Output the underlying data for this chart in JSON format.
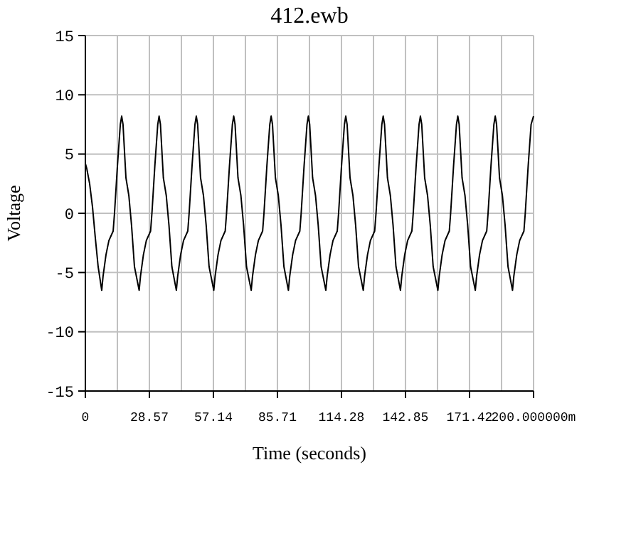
{
  "chart_data": {
    "type": "line",
    "title": "412.ewb",
    "xlabel": "Time (seconds)",
    "ylabel": "Voltage",
    "xlim": [
      0,
      200
    ],
    "ylim": [
      -15,
      15
    ],
    "yticks": [
      -15,
      -10,
      -5,
      0,
      5,
      10,
      15
    ],
    "xticks": [
      {
        "value": 0,
        "label": "0"
      },
      {
        "value": 14.29,
        "label": null
      },
      {
        "value": 28.57,
        "label": "28.57"
      },
      {
        "value": 42.86,
        "label": null
      },
      {
        "value": 57.14,
        "label": "57.14"
      },
      {
        "value": 71.43,
        "label": null
      },
      {
        "value": 85.71,
        "label": "85.71"
      },
      {
        "value": 100,
        "label": null
      },
      {
        "value": 114.28,
        "label": "114.28"
      },
      {
        "value": 128.57,
        "label": null
      },
      {
        "value": 142.85,
        "label": "142.85"
      },
      {
        "value": 157.14,
        "label": null
      },
      {
        "value": 171.42,
        "label": "171.42"
      },
      {
        "value": 185.71,
        "label": null
      },
      {
        "value": 200,
        "label": "200.000000m"
      }
    ],
    "grid": true,
    "marker": "none",
    "line_style": "solid",
    "series": [
      {
        "color": "#000000",
        "x": [
          0,
          0.6,
          1.9,
          3.2,
          4.4,
          5.7,
          7.3,
          7.9,
          9.2,
          10.5,
          12.4,
          13.0,
          14.3,
          15.6,
          16.2,
          16.8,
          18.1,
          19.4,
          20.6,
          21.9,
          24.0,
          24.6,
          25.9,
          27.2,
          29.1,
          29.7,
          31.0,
          32.3,
          32.9,
          33.5,
          34.8,
          36.1,
          37.3,
          38.6,
          40.6,
          41.2,
          42.5,
          43.8,
          45.7,
          46.3,
          47.6,
          48.9,
          49.5,
          50.1,
          51.4,
          52.7,
          53.9,
          55.2,
          57.3,
          57.9,
          59.2,
          60.5,
          62.4,
          63.0,
          64.3,
          65.6,
          66.2,
          66.8,
          68.1,
          69.4,
          70.6,
          71.9,
          74.0,
          74.6,
          75.9,
          77.2,
          79.1,
          79.7,
          81.0,
          82.3,
          82.9,
          83.5,
          84.8,
          86.1,
          87.3,
          88.6,
          90.6,
          91.2,
          92.5,
          93.8,
          95.7,
          96.3,
          97.6,
          98.9,
          99.5,
          100.1,
          101.4,
          102.7,
          103.9,
          105.2,
          107.3,
          107.9,
          109.2,
          110.5,
          112.4,
          113.0,
          114.3,
          115.6,
          116.2,
          116.8,
          118.1,
          119.4,
          120.6,
          121.9,
          124.0,
          124.6,
          125.9,
          127.2,
          129.1,
          129.7,
          131.0,
          132.3,
          132.9,
          133.5,
          134.8,
          136.1,
          137.3,
          138.6,
          140.6,
          141.2,
          142.5,
          143.8,
          145.7,
          146.3,
          147.6,
          148.9,
          149.5,
          150.1,
          151.4,
          152.7,
          153.9,
          155.2,
          157.3,
          157.9,
          159.2,
          160.5,
          162.4,
          163.0,
          164.3,
          165.6,
          166.2,
          166.8,
          168.1,
          169.4,
          170.6,
          171.9,
          174.0,
          174.6,
          175.9,
          177.2,
          179.1,
          179.7,
          181.0,
          182.3,
          182.9,
          183.5,
          184.8,
          186.1,
          187.3,
          188.6,
          190.6,
          191.2,
          192.5,
          193.8,
          195.7,
          196.3,
          197.6,
          198.9,
          200
        ],
        "values": [
          4.2,
          3.8,
          2.5,
          0.5,
          -2,
          -4.5,
          -6.5,
          -5.3,
          -3.5,
          -2.3,
          -1.5,
          0,
          4,
          7.5,
          8.2,
          7.5,
          3,
          1.5,
          -1,
          -4.5,
          -6.5,
          -5.3,
          -3.5,
          -2.3,
          -1.5,
          0,
          4,
          7.5,
          8.2,
          7.5,
          3,
          1.5,
          -1,
          -4.5,
          -6.5,
          -5.3,
          -3.5,
          -2.3,
          -1.5,
          0,
          4,
          7.5,
          8.2,
          7.5,
          3,
          1.5,
          -1,
          -4.5,
          -6.5,
          -5.3,
          -3.5,
          -2.3,
          -1.5,
          0,
          4,
          7.5,
          8.2,
          7.5,
          3,
          1.5,
          -1,
          -4.5,
          -6.5,
          -5.3,
          -3.5,
          -2.3,
          -1.5,
          0,
          4,
          7.5,
          8.2,
          7.5,
          3,
          1.5,
          -1,
          -4.5,
          -6.5,
          -5.3,
          -3.5,
          -2.3,
          -1.5,
          0,
          4,
          7.5,
          8.2,
          7.5,
          3,
          1.5,
          -1,
          -4.5,
          -6.5,
          -5.3,
          -3.5,
          -2.3,
          -1.5,
          0,
          4,
          7.5,
          8.2,
          7.5,
          3,
          1.5,
          -1,
          -4.5,
          -6.5,
          -5.3,
          -3.5,
          -2.3,
          -1.5,
          0,
          4,
          7.5,
          8.2,
          7.5,
          3,
          1.5,
          -1,
          -4.5,
          -6.5,
          -5.3,
          -3.5,
          -2.3,
          -1.5,
          0,
          4,
          7.5,
          8.2,
          7.5,
          3,
          1.5,
          -1,
          -4.5,
          -6.5,
          -5.3,
          -3.5,
          -2.3,
          -1.5,
          0,
          4,
          7.5,
          8.2,
          7.5,
          3,
          1.5,
          -1,
          -4.5,
          -6.5,
          -5.3,
          -3.5,
          -2.3,
          -1.5,
          0,
          4,
          7.5,
          8.2,
          7.5,
          3,
          1.5,
          -1,
          -4.5,
          -6.5,
          -5.3,
          -3.5,
          -2.3,
          -1.5,
          0,
          4,
          7.5,
          8.2
        ]
      }
    ]
  }
}
